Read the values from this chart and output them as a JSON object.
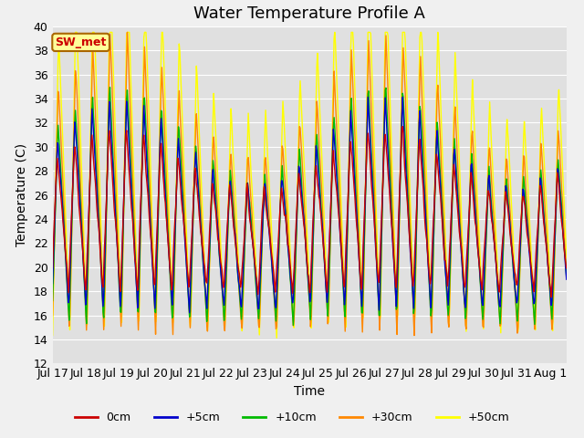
{
  "title": "Water Temperature Profile A",
  "xlabel": "Time",
  "ylabel": "Temperature (C)",
  "ylim": [
    12,
    40
  ],
  "yticks": [
    12,
    14,
    16,
    18,
    20,
    22,
    24,
    26,
    28,
    30,
    32,
    34,
    36,
    38,
    40
  ],
  "line_colors": {
    "0cm": "#cc0000",
    "+5cm": "#0000cc",
    "+10cm": "#00bb00",
    "+30cm": "#ff8800",
    "+50cm": "#ffff00"
  },
  "sw_met_label": "SW_met",
  "sw_met_bg": "#ffff99",
  "sw_met_edge": "#aa6600",
  "sw_met_text_color": "#cc0000",
  "fig_bg": "#f0f0f0",
  "plot_bg": "#e0e0e0",
  "grid_color": "#ffffff",
  "title_fontsize": 13,
  "axis_fontsize": 10,
  "tick_fontsize": 9,
  "x_tick_labels": [
    "Jul 17",
    "Jul 18",
    "Jul 19",
    "Jul 20",
    "Jul 21",
    "Jul 22",
    "Jul 23",
    "Jul 24",
    "Jul 25",
    "Jul 26",
    "Jul 27",
    "Jul 28",
    "Jul 29",
    "Jul 30",
    "Jul 31",
    "Aug 1"
  ],
  "n_days": 15.5,
  "line_width": 1.0
}
